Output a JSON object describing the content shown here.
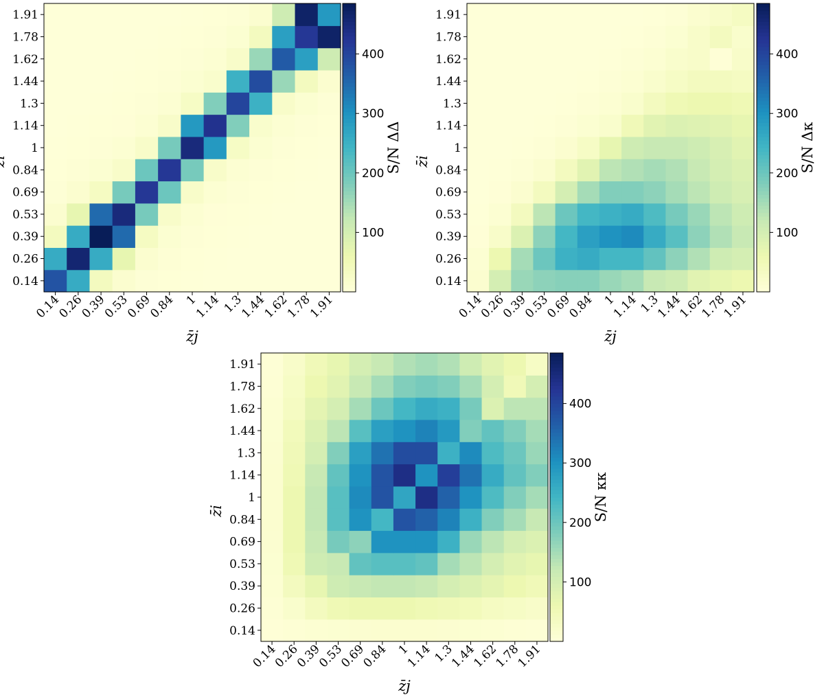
{
  "colormap": [
    "#ffffd9",
    "#edf8b1",
    "#c7e9b4",
    "#7fcdbb",
    "#41b6c4",
    "#1d91c0",
    "#225ea8",
    "#253494",
    "#081d58"
  ],
  "chart_data": [
    {
      "type": "heatmap",
      "name": "ΔΔ",
      "xlabel": "z̄j",
      "ylabel": "z̄i",
      "colorbar_label": "S/N  ΔΔ",
      "colorbar_ticks": [
        "100",
        "200",
        "300",
        "400"
      ],
      "colorbar_ticks_values": [
        100,
        200,
        300,
        400
      ],
      "zlim": [
        0,
        485
      ],
      "x_tick_labels": [
        "0.14",
        "0.26",
        "0.39",
        "0.53",
        "0.69",
        "0.84",
        "1",
        "1.14",
        "1.3",
        "1.44",
        "1.62",
        "1.78",
        "1.91"
      ],
      "y_tick_labels": [
        "0.14",
        "0.26",
        "0.39",
        "0.53",
        "0.69",
        "0.84",
        "1",
        "1.14",
        "1.3",
        "1.44",
        "1.62",
        "1.78",
        "1.91"
      ],
      "values": [
        [
          380,
          260,
          40,
          15,
          6,
          4,
          3,
          2,
          2,
          2,
          2,
          2,
          2
        ],
        [
          260,
          460,
          260,
          70,
          15,
          8,
          4,
          3,
          2,
          2,
          2,
          2,
          2
        ],
        [
          40,
          260,
          485,
          350,
          35,
          12,
          6,
          4,
          3,
          2,
          2,
          2,
          2
        ],
        [
          15,
          70,
          350,
          450,
          190,
          25,
          10,
          5,
          4,
          3,
          2,
          2,
          2
        ],
        [
          6,
          15,
          35,
          190,
          420,
          200,
          25,
          10,
          6,
          4,
          3,
          2,
          2
        ],
        [
          4,
          8,
          12,
          25,
          200,
          420,
          190,
          25,
          10,
          6,
          4,
          3,
          2
        ],
        [
          3,
          4,
          6,
          10,
          25,
          190,
          450,
          290,
          30,
          12,
          6,
          4,
          3
        ],
        [
          2,
          3,
          4,
          5,
          10,
          25,
          290,
          430,
          180,
          20,
          10,
          6,
          4
        ],
        [
          2,
          2,
          3,
          4,
          6,
          10,
          30,
          180,
          400,
          250,
          25,
          12,
          6
        ],
        [
          2,
          2,
          2,
          3,
          4,
          6,
          12,
          20,
          250,
          390,
          160,
          40,
          15
        ],
        [
          2,
          2,
          2,
          2,
          3,
          4,
          6,
          10,
          25,
          160,
          370,
          280,
          110
        ],
        [
          2,
          2,
          2,
          2,
          2,
          3,
          4,
          6,
          12,
          40,
          280,
          420,
          470
        ],
        [
          2,
          2,
          2,
          2,
          2,
          2,
          3,
          4,
          6,
          15,
          110,
          470,
          290
        ]
      ]
    },
    {
      "type": "heatmap",
      "name": "Δκ",
      "xlabel": "z̄j",
      "ylabel": "z̄i",
      "colorbar_label": "S/N  Δκ",
      "colorbar_ticks": [
        "100",
        "200",
        "300",
        "400"
      ],
      "colorbar_ticks_values": [
        100,
        200,
        300,
        400
      ],
      "zlim": [
        0,
        485
      ],
      "x_tick_labels": [
        "0.14",
        "0.26",
        "0.39",
        "0.53",
        "0.69",
        "0.84",
        "1",
        "1.14",
        "1.3",
        "1.44",
        "1.62",
        "1.78",
        "1.91"
      ],
      "y_tick_labels": [
        "0.14",
        "0.26",
        "0.39",
        "0.53",
        "0.69",
        "0.84",
        "1",
        "1.14",
        "1.3",
        "1.44",
        "1.62",
        "1.78",
        "1.91"
      ],
      "values": [
        [
          15,
          100,
          160,
          170,
          175,
          175,
          160,
          150,
          120,
          110,
          80,
          70,
          60
        ],
        [
          10,
          60,
          150,
          200,
          250,
          260,
          240,
          240,
          210,
          170,
          140,
          110,
          100
        ],
        [
          5,
          25,
          90,
          170,
          240,
          280,
          300,
          310,
          260,
          220,
          170,
          140,
          120
        ],
        [
          3,
          10,
          40,
          130,
          200,
          240,
          250,
          260,
          230,
          190,
          160,
          130,
          110
        ],
        [
          2,
          5,
          15,
          40,
          100,
          150,
          180,
          180,
          170,
          150,
          130,
          110,
          95
        ],
        [
          2,
          3,
          6,
          15,
          40,
          80,
          130,
          140,
          150,
          140,
          120,
          100,
          90
        ],
        [
          2,
          2,
          3,
          6,
          15,
          30,
          70,
          110,
          120,
          120,
          110,
          95,
          80
        ],
        [
          2,
          2,
          2,
          3,
          6,
          12,
          20,
          50,
          80,
          90,
          85,
          80,
          70
        ],
        [
          2,
          2,
          2,
          2,
          3,
          6,
          10,
          20,
          40,
          55,
          60,
          60,
          55
        ],
        [
          2,
          2,
          2,
          2,
          2,
          3,
          6,
          10,
          20,
          30,
          40,
          40,
          35
        ],
        [
          2,
          2,
          2,
          2,
          2,
          2,
          3,
          6,
          10,
          20,
          25,
          5,
          25
        ],
        [
          2,
          2,
          2,
          2,
          2,
          2,
          2,
          3,
          6,
          12,
          25,
          40,
          20
        ],
        [
          2,
          2,
          2,
          2,
          2,
          2,
          2,
          2,
          3,
          6,
          15,
          25,
          35
        ]
      ]
    },
    {
      "type": "heatmap",
      "name": "κκ",
      "xlabel": "z̄j",
      "ylabel": "z̄i",
      "colorbar_label": "S/N  κκ",
      "colorbar_ticks": [
        "100",
        "200",
        "300",
        "400"
      ],
      "colorbar_ticks_values": [
        100,
        200,
        300,
        400
      ],
      "zlim": [
        0,
        485
      ],
      "x_tick_labels": [
        "0.14",
        "0.26",
        "0.39",
        "0.53",
        "0.69",
        "0.84",
        "1",
        "1.14",
        "1.3",
        "1.44",
        "1.62",
        "1.78",
        "1.91"
      ],
      "y_tick_labels": [
        "0.14",
        "0.26",
        "0.39",
        "0.53",
        "0.69",
        "0.84",
        "1",
        "1.14",
        "1.3",
        "1.44",
        "1.62",
        "1.78",
        "1.91"
      ],
      "values": [
        [
          5,
          8,
          10,
          12,
          14,
          15,
          15,
          15,
          14,
          12,
          10,
          8,
          6
        ],
        [
          8,
          20,
          40,
          55,
          60,
          60,
          60,
          55,
          50,
          45,
          35,
          30,
          25
        ],
        [
          10,
          40,
          70,
          110,
          120,
          125,
          125,
          120,
          100,
          90,
          75,
          60,
          50
        ],
        [
          12,
          55,
          110,
          120,
          210,
          220,
          220,
          210,
          150,
          130,
          100,
          80,
          70
        ],
        [
          14,
          60,
          120,
          190,
          170,
          300,
          300,
          300,
          250,
          160,
          130,
          100,
          90
        ],
        [
          15,
          60,
          125,
          220,
          300,
          240,
          380,
          360,
          320,
          250,
          180,
          150,
          120
        ],
        [
          15,
          60,
          125,
          220,
          310,
          380,
          270,
          440,
          360,
          300,
          230,
          180,
          150
        ],
        [
          15,
          55,
          120,
          210,
          300,
          380,
          440,
          300,
          410,
          340,
          260,
          210,
          180
        ],
        [
          14,
          50,
          100,
          180,
          280,
          340,
          390,
          390,
          250,
          310,
          230,
          200,
          160
        ],
        [
          12,
          45,
          90,
          130,
          220,
          280,
          300,
          320,
          290,
          180,
          210,
          180,
          150
        ],
        [
          10,
          35,
          75,
          100,
          150,
          200,
          240,
          260,
          250,
          190,
          90,
          130,
          130
        ],
        [
          8,
          30,
          60,
          80,
          120,
          150,
          180,
          190,
          180,
          150,
          100,
          50,
          100
        ],
        [
          6,
          25,
          50,
          70,
          100,
          120,
          140,
          150,
          140,
          110,
          80,
          60,
          30
        ]
      ]
    }
  ]
}
